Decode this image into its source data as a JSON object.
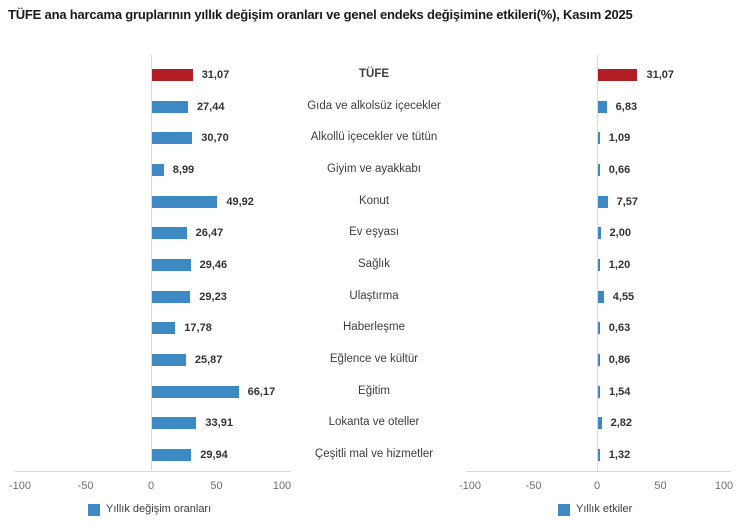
{
  "chart_data": {
    "type": "bar",
    "orientation": "horizontal",
    "title": "TÜFE ana harcama gruplarının yıllık değişim oranları ve genel endeks değişimine etkileri(%), Kasım 2025",
    "categories": [
      "TÜFE",
      "Gıda ve alkolsüz içecekler",
      "Alkollü içecekler ve tütün",
      "Giyim ve ayakkabı",
      "Konut",
      "Ev eşyası",
      "Sağlık",
      "Ulaştırma",
      "Haberleşme",
      "Eğlence ve kültür",
      "Eğitim",
      "Lokanta ve oteller",
      "Çeşitli mal ve hizmetler"
    ],
    "series": [
      {
        "name": "Yıllık değişim oranları",
        "values": [
          31.07,
          27.44,
          30.7,
          8.99,
          49.92,
          26.47,
          29.46,
          29.23,
          17.78,
          25.87,
          66.17,
          33.91,
          29.94
        ]
      },
      {
        "name": "Yıllık etkiler",
        "values": [
          31.07,
          6.83,
          1.09,
          0.66,
          7.57,
          2.0,
          1.2,
          4.55,
          0.63,
          0.86,
          1.54,
          2.82,
          1.32
        ]
      }
    ],
    "xlim": [
      -100,
      100
    ],
    "xticks": [
      -100,
      -50,
      0,
      50,
      100
    ],
    "decimal_separator": ",",
    "highlight_index": 0,
    "legend_position": "bottom",
    "grid": false,
    "colors": {
      "bar": "#3D89C3",
      "highlight": "#B01E24",
      "axis": "#D9D9D9",
      "tick_text": "#6F6F6F",
      "value_text": "#333333",
      "category_text": "#3D3D3D"
    }
  }
}
